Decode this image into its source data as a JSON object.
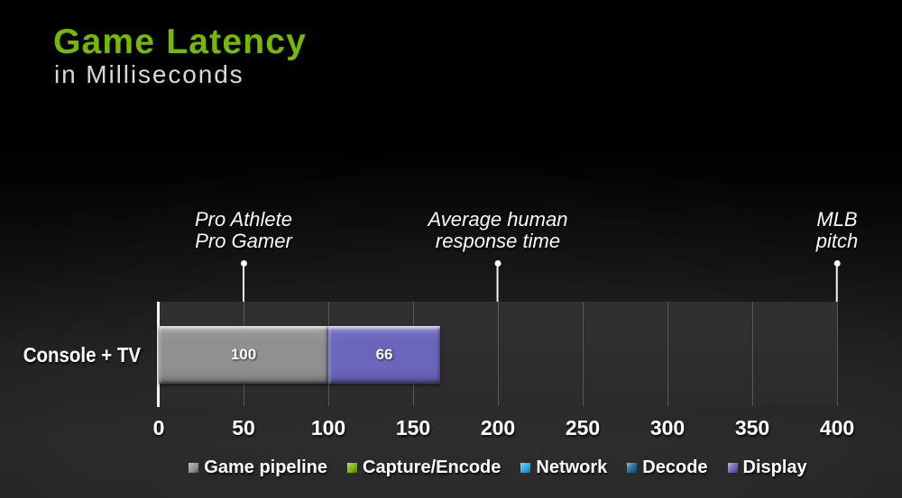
{
  "header": {
    "title": "Game Latency",
    "subtitle": "in Milliseconds"
  },
  "colors": {
    "title_green": "#76b900",
    "subtitle_gray": "#d9d9d9",
    "background_top": "#000000",
    "background_bottom": "#262626",
    "plot_backdrop": "#2e2e2e",
    "gridline": "#575757",
    "axis_line": "#f5f5f5",
    "text_white": "#ffffff"
  },
  "chart_data": {
    "type": "bar",
    "orientation": "horizontal",
    "stacked": true,
    "title": "Game Latency",
    "subtitle": "in Milliseconds",
    "xlabel": "",
    "ylabel": "",
    "xlim": [
      0,
      400
    ],
    "xticks": [
      0,
      50,
      100,
      150,
      200,
      250,
      300,
      350,
      400
    ],
    "grid": true,
    "legend_position": "bottom",
    "categories": [
      "Console + TV"
    ],
    "series": [
      {
        "name": "Game pipeline",
        "color": "#909090",
        "values": [
          100
        ]
      },
      {
        "name": "Capture/Encode",
        "color": "#76b900",
        "values": [
          0
        ]
      },
      {
        "name": "Network",
        "color": "#29abe2",
        "values": [
          0
        ]
      },
      {
        "name": "Decode",
        "color": "#1f6a9b",
        "values": [
          0
        ]
      },
      {
        "name": "Display",
        "color": "#6b65bc",
        "values": [
          66
        ]
      }
    ],
    "annotations": [
      {
        "x": 50,
        "lines": [
          "Pro Athlete",
          "Pro Gamer"
        ]
      },
      {
        "x": 200,
        "lines": [
          "Average human",
          "response time"
        ]
      },
      {
        "x": 400,
        "lines": [
          "MLB",
          "pitch"
        ]
      }
    ]
  }
}
